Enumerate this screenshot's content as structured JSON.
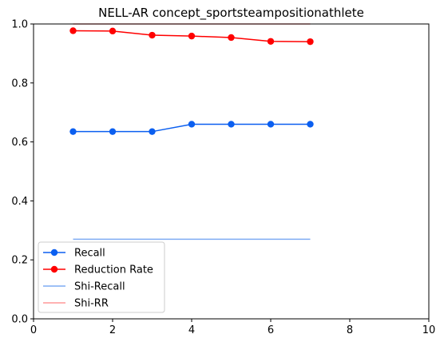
{
  "chart_data": {
    "type": "line",
    "title": "NELL-AR concept_sportsteampositionathlete",
    "xlabel": "",
    "ylabel": "",
    "xlim": [
      0,
      10
    ],
    "ylim": [
      0,
      1.0
    ],
    "x_ticks": [
      0,
      2,
      4,
      6,
      8,
      10
    ],
    "y_ticks": [
      0.0,
      0.2,
      0.4,
      0.6,
      0.8,
      1.0
    ],
    "x_tick_labels": [
      "0",
      "2",
      "4",
      "6",
      "8",
      "10"
    ],
    "y_tick_labels": [
      "0.0",
      "0.2",
      "0.4",
      "0.6",
      "0.8",
      "1.0"
    ],
    "grid": false,
    "legend_position": "lower-left",
    "series": [
      {
        "name": "Recall",
        "color": "#0b5ff0",
        "marker": "circle",
        "x": [
          1,
          2,
          3,
          4,
          5,
          6,
          7
        ],
        "y": [
          0.635,
          0.635,
          0.635,
          0.66,
          0.66,
          0.66,
          0.66
        ]
      },
      {
        "name": "Reduction Rate",
        "color": "#ff0000",
        "marker": "circle",
        "x": [
          1,
          2,
          3,
          4,
          5,
          6,
          7
        ],
        "y": [
          0.977,
          0.976,
          0.962,
          0.959,
          0.954,
          0.941,
          0.94
        ]
      },
      {
        "name": "Shi-Recall",
        "color": "#7fabf3",
        "marker": "none",
        "x": [
          1,
          7
        ],
        "y": [
          0.27,
          0.27
        ]
      },
      {
        "name": "Shi-RR",
        "color": "#ff9999",
        "marker": "none",
        "x": [
          1,
          7
        ],
        "y": [
          1.0,
          1.0
        ]
      }
    ]
  }
}
